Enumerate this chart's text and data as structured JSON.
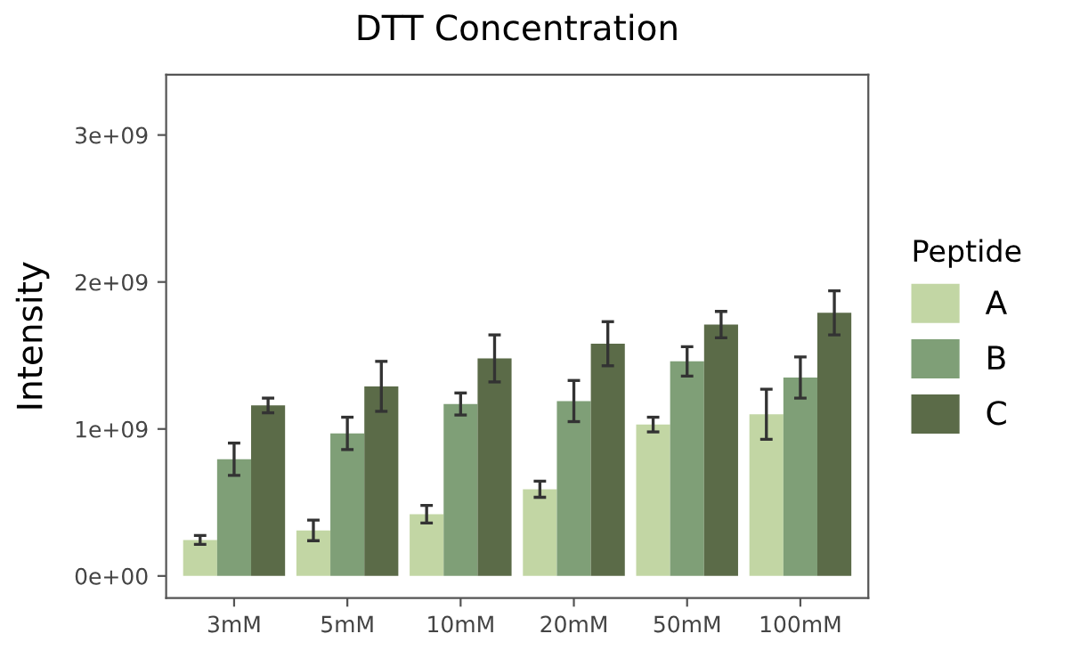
{
  "chart_data": {
    "type": "bar",
    "title": "DTT Concentration",
    "ylabel": "Intensity",
    "legend_title": "Peptide",
    "categories": [
      "3mM",
      "5mM",
      "10mM",
      "20mM",
      "50mM",
      "100mM"
    ],
    "series": [
      {
        "name": "A",
        "color": "#c2d6a4",
        "values": [
          245000000,
          310000000,
          420000000,
          590000000,
          1030000000,
          1100000000
        ],
        "errors": [
          30000000,
          70000000,
          60000000,
          55000000,
          50000000,
          170000000
        ]
      },
      {
        "name": "B",
        "color": "#7f9f77",
        "values": [
          794000000,
          970000000,
          1170000000,
          1190000000,
          1460000000,
          1350000000
        ],
        "errors": [
          110000000,
          110000000,
          75000000,
          140000000,
          100000000,
          140000000
        ]
      },
      {
        "name": "C",
        "color": "#5b6b48",
        "values": [
          1160000000,
          1290000000,
          1480000000,
          1580000000,
          1710000000,
          1790000000
        ],
        "errors": [
          50000000,
          170000000,
          160000000,
          150000000,
          90000000,
          150000000
        ]
      }
    ],
    "ylim": [
      -150000000,
      3410000000
    ],
    "yticks": [
      {
        "value": 0,
        "label": "0e+00"
      },
      {
        "value": 1000000000,
        "label": "1e+09"
      },
      {
        "value": 2000000000,
        "label": "2e+09"
      },
      {
        "value": 3000000000,
        "label": "3e+09"
      }
    ],
    "legend": "right",
    "grid": false
  }
}
